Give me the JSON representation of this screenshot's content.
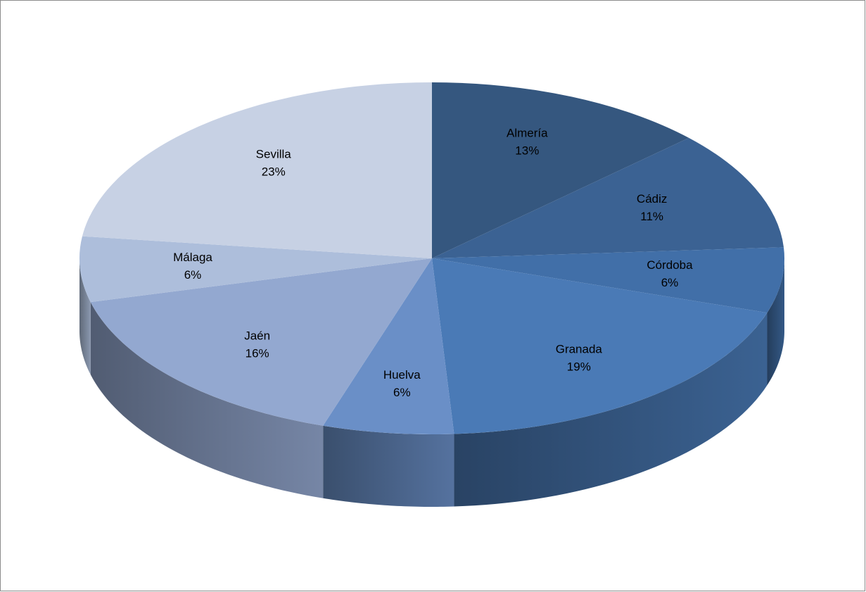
{
  "chart_data": {
    "type": "pie3d",
    "categories": [
      "Almería",
      "Cádiz",
      "Córdoba",
      "Granada",
      "Huelva",
      "Jaén",
      "Málaga",
      "Sevilla"
    ],
    "values": [
      13,
      11,
      6,
      19,
      6,
      16,
      6,
      23
    ],
    "value_labels": [
      "13%",
      "11%",
      "6%",
      "19%",
      "6%",
      "16%",
      "6%",
      "23%"
    ],
    "colors": [
      "#35577f",
      "#3b6293",
      "#416fa8",
      "#4a7ab6",
      "#6a8fc7",
      "#93a8d0",
      "#adbedb",
      "#c7d1e4"
    ]
  }
}
